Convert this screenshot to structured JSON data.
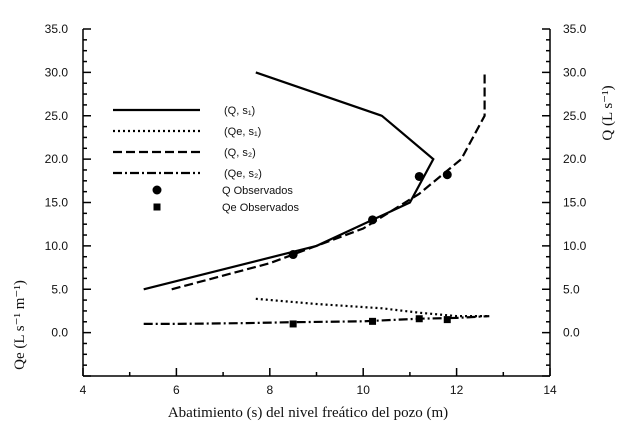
{
  "chart_data": {
    "type": "line",
    "title": "",
    "xlabel": "Abatimiento (s) del nivel freático del pozo (m)",
    "ylabel_left": "Qe (L s⁻¹ m⁻¹)",
    "ylabel_right": "Q (L s⁻¹)",
    "xlim": [
      4,
      14
    ],
    "ylim": [
      -5,
      35
    ],
    "x_ticks": [
      4,
      6,
      8,
      10,
      12,
      14
    ],
    "x_tick_labels": [
      "4",
      "6",
      "8",
      "10",
      "12",
      "14"
    ],
    "y_ticks": [
      0,
      5,
      10,
      15,
      20,
      25,
      30,
      35
    ],
    "y_tick_labels": [
      "0.0",
      "5.0",
      "10.0",
      "15.0",
      "20.0",
      "25.0",
      "30.0",
      "35.0"
    ],
    "grid": false,
    "legend_position": "upper-left",
    "series": [
      {
        "name": "(Q, s₁)",
        "style": "solid",
        "x": [
          7.7,
          10.4,
          11.5,
          11.0,
          9.0,
          5.3
        ],
        "y": [
          30.0,
          25.0,
          20.0,
          15.0,
          10.0,
          5.0
        ]
      },
      {
        "name": "(Qe, s₁)",
        "style": "dotted",
        "x": [
          7.7,
          9.0,
          10.4,
          11.2,
          12.0,
          12.7
        ],
        "y": [
          3.9,
          3.3,
          2.8,
          2.3,
          1.9,
          1.9
        ]
      },
      {
        "name": "(Q, s₂)",
        "style": "dashed",
        "x": [
          5.9,
          8.0,
          10.0,
          11.2,
          12.1,
          12.6,
          12.6
        ],
        "y": [
          5.0,
          8.0,
          12.0,
          16.0,
          20.0,
          25.0,
          30.0
        ]
      },
      {
        "name": "(Qe, s₂)",
        "style": "dashdot",
        "x": [
          5.3,
          6.0,
          7.5,
          8.5,
          10.0,
          11.2,
          12.0,
          12.7
        ],
        "y": [
          1.0,
          1.0,
          1.1,
          1.2,
          1.3,
          1.6,
          1.7,
          1.9
        ]
      },
      {
        "name": "Q  Observados",
        "style": "circle-marker",
        "x": [
          8.5,
          10.2,
          11.2,
          11.8
        ],
        "y": [
          9.0,
          13.0,
          18.0,
          18.2
        ]
      },
      {
        "name": "Qe Observados",
        "style": "square-marker",
        "x": [
          8.5,
          10.2,
          11.2,
          11.8
        ],
        "y": [
          1.0,
          1.3,
          1.6,
          1.5
        ]
      }
    ]
  }
}
